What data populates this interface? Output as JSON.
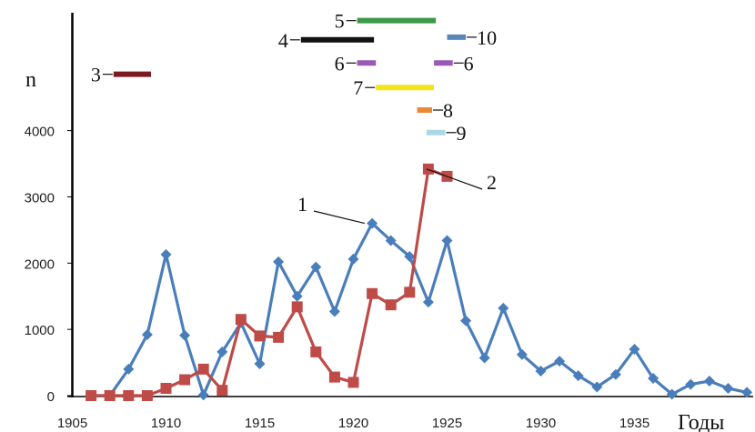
{
  "chart_data": {
    "type": "line",
    "title": "",
    "xlabel": "Годы",
    "ylabel": "n",
    "xlim": [
      1905,
      1937.5
    ],
    "ylim": [
      0,
      5500
    ],
    "grid": false,
    "xticks": [
      1905,
      1910,
      1915,
      1920,
      1925,
      1930,
      1935
    ],
    "yticks": [
      0,
      1000,
      2000,
      3000,
      4000
    ],
    "series": [
      {
        "name": "1",
        "color": "#4a7ebb",
        "marker": "diamond",
        "x": [
          1906,
          1907,
          1908,
          1909,
          1910,
          1911,
          1912,
          1913,
          1914,
          1915,
          1916,
          1917,
          1918,
          1919,
          1920,
          1921,
          1922,
          1923,
          1924,
          1925,
          1926,
          1927,
          1928,
          1929,
          1930,
          1931,
          1932,
          1933,
          1934,
          1935,
          1936,
          1937,
          1938,
          1939,
          1940,
          1941
        ],
        "y": [
          0,
          0,
          400,
          920,
          2130,
          910,
          10,
          660,
          1100,
          480,
          2020,
          1500,
          1940,
          1270,
          2060,
          2600,
          2340,
          2100,
          1410,
          2340,
          1130,
          570,
          1320,
          620,
          370,
          520,
          300,
          130,
          320,
          700,
          260,
          20,
          170,
          220,
          110,
          50
        ]
      },
      {
        "name": "2",
        "color": "#be4b48",
        "marker": "square",
        "x": [
          1906,
          1907,
          1908,
          1909,
          1910,
          1911,
          1912,
          1913,
          1914,
          1915,
          1916,
          1917,
          1918,
          1919,
          1920,
          1921,
          1922,
          1923,
          1924,
          1925
        ],
        "y": [
          0,
          0,
          0,
          0,
          110,
          240,
          400,
          80,
          1150,
          900,
          880,
          1340,
          660,
          280,
          200,
          1540,
          1370,
          1560,
          3420,
          3310
        ]
      }
    ],
    "ranges": [
      {
        "label": "3",
        "color": "#7b1a20",
        "x0": 1907.2,
        "x1": 1909.2,
        "y": 4850
      },
      {
        "label": "4",
        "color": "#111111",
        "x0": 1917.2,
        "x1": 1921.1,
        "y": 5370
      },
      {
        "label": "5",
        "color": "#3a9a48",
        "x0": 1920.2,
        "x1": 1924.4,
        "y": 5660
      },
      {
        "label": "10",
        "color": "#5b87b8",
        "x0": 1925.0,
        "x1": 1926.0,
        "y": 5410
      },
      {
        "label": "6",
        "color": "#9b59b6",
        "x0": 1920.2,
        "x1": 1921.2,
        "y": 5020
      },
      {
        "label": "6",
        "color": "#9b59b6",
        "x0": 1924.3,
        "x1": 1925.3,
        "y": 5020
      },
      {
        "label": "7",
        "color": "#f2e41d",
        "x0": 1921.2,
        "x1": 1924.3,
        "y": 4650
      },
      {
        "label": "8",
        "color": "#e8893a",
        "x0": 1923.4,
        "x1": 1924.2,
        "y": 4310
      },
      {
        "label": "9",
        "color": "#a9d8e6",
        "x0": 1923.9,
        "x1": 1924.9,
        "y": 3970
      }
    ],
    "callouts": [
      {
        "label": "1",
        "target_series": 0,
        "target_x": 1920.6
      },
      {
        "label": "2",
        "target_series": 1,
        "target_x": 1923.9
      }
    ]
  }
}
